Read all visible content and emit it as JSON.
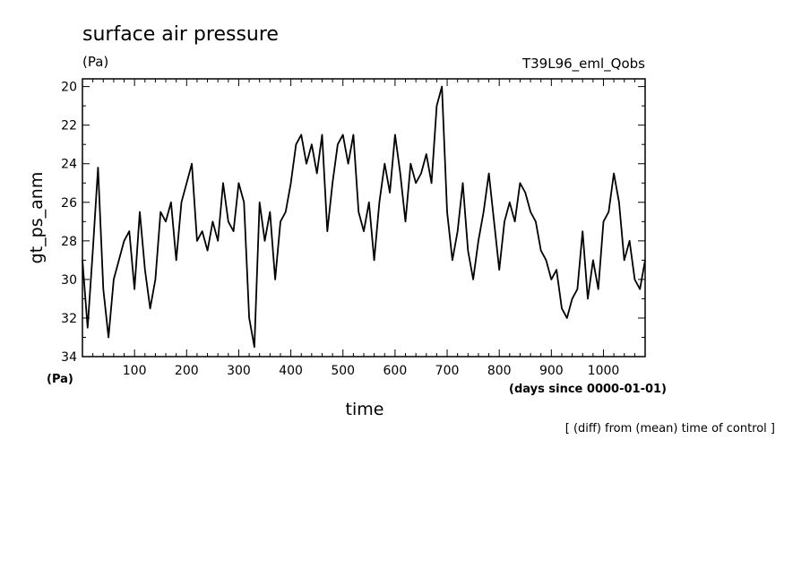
{
  "chart_data": {
    "type": "line",
    "title": "surface air pressure",
    "title_units": "(Pa)",
    "experiment": "T39L96_eml_Qobs",
    "ylabel": "gt_ps_anm",
    "xlabel": "time",
    "x_units": "(days since 0000-01-01)",
    "y_units": "(Pa)",
    "footnote": "[ (diff) from (mean) time of control ]",
    "xlim": [
      0,
      1080
    ],
    "ylim": [
      34,
      19.6
    ],
    "y_inverted": true,
    "x_ticks": [
      100,
      200,
      300,
      400,
      500,
      600,
      700,
      800,
      900,
      1000
    ],
    "y_ticks": [
      20,
      22,
      24,
      26,
      28,
      30,
      32,
      34
    ],
    "line_color": "#000000",
    "series": [
      {
        "name": "gt_ps_anm",
        "x": [
          0,
          10,
          20,
          30,
          40,
          50,
          60,
          70,
          80,
          90,
          100,
          110,
          120,
          130,
          140,
          150,
          160,
          170,
          180,
          190,
          200,
          210,
          220,
          230,
          240,
          250,
          260,
          270,
          280,
          290,
          300,
          310,
          320,
          330,
          340,
          350,
          360,
          370,
          380,
          390,
          400,
          410,
          420,
          430,
          440,
          450,
          460,
          470,
          480,
          490,
          500,
          510,
          520,
          530,
          540,
          550,
          560,
          570,
          580,
          590,
          600,
          610,
          620,
          630,
          640,
          650,
          660,
          670,
          680,
          690,
          700,
          710,
          720,
          730,
          740,
          750,
          760,
          770,
          780,
          790,
          800,
          810,
          820,
          830,
          840,
          850,
          860,
          870,
          880,
          890,
          900,
          910,
          920,
          930,
          940,
          950,
          960,
          970,
          980,
          990,
          1000,
          1010,
          1020,
          1030,
          1040,
          1050,
          1060,
          1070,
          1080
        ],
        "values": [
          29.0,
          32.5,
          28.5,
          24.2,
          30.5,
          33.0,
          30.0,
          29.0,
          28.0,
          27.5,
          30.5,
          26.5,
          29.5,
          31.5,
          30.0,
          26.5,
          27.0,
          26.0,
          29.0,
          26.0,
          25.0,
          24.0,
          28.0,
          27.5,
          28.5,
          27.0,
          28.0,
          25.0,
          27.0,
          27.5,
          25.0,
          26.0,
          32.0,
          33.5,
          26.0,
          28.0,
          26.5,
          30.0,
          27.0,
          26.5,
          25.0,
          23.0,
          22.5,
          24.0,
          23.0,
          24.5,
          22.5,
          27.5,
          25.0,
          23.0,
          22.5,
          24.0,
          22.5,
          26.5,
          27.5,
          26.0,
          29.0,
          26.0,
          24.0,
          25.5,
          22.5,
          24.5,
          27.0,
          24.0,
          25.0,
          24.5,
          23.5,
          25.0,
          21.0,
          20.0,
          26.5,
          29.0,
          27.5,
          25.0,
          28.5,
          30.0,
          28.0,
          26.5,
          24.5,
          27.0,
          29.5,
          27.0,
          26.0,
          27.0,
          25.0,
          25.5,
          26.5,
          27.0,
          28.5,
          29.0,
          30.0,
          29.5,
          31.5,
          32.0,
          31.0,
          30.5,
          27.5,
          31.0,
          29.0,
          30.5,
          27.0,
          26.5,
          24.5,
          26.0,
          29.0,
          28.0,
          30.0,
          30.5,
          29.0
        ]
      }
    ]
  }
}
